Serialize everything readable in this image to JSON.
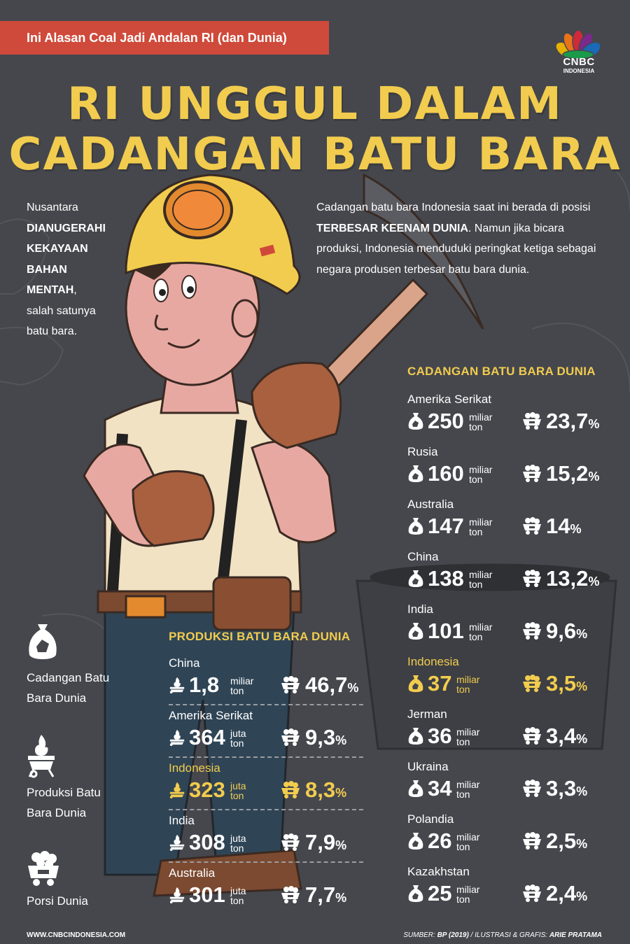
{
  "header": {
    "banner": "Ini Alasan Coal Jadi Andalan RI (dan Dunia)",
    "logo_text": "CNBC",
    "logo_sub": "INDONESIA",
    "title_line1": "RI UNGGUL DALAM",
    "title_line2": "CADANGAN BATU BARA"
  },
  "intro_left": {
    "pre": "Nusantara",
    "bold_lines": [
      "DIANUGERAHI",
      "KEKAYAAN",
      "BAHAN",
      "MENTAH"
    ],
    "comma": ",",
    "post_lines": [
      "salah satunya",
      "batu bara."
    ]
  },
  "intro_right": {
    "pre": "Cadangan batu bara Indonesia saat ini berada di posisi ",
    "bold": "TERBESAR KEENAM DUNIA",
    "post": ". Namun jika bicara produksi, Indonesia menduduki peringkat ketiga sebagai negara produsen terbesar batu bara dunia."
  },
  "reserves": {
    "title": "CADANGAN BATU BARA DUNIA",
    "items": [
      {
        "country": "Amerika Serikat",
        "value": "250",
        "unit1": "miliar",
        "unit2": "ton",
        "pct": "23,7",
        "pct_sign": "%"
      },
      {
        "country": "Rusia",
        "value": "160",
        "unit1": "miliar",
        "unit2": "ton",
        "pct": "15,2",
        "pct_sign": "%"
      },
      {
        "country": "Australia",
        "value": "147",
        "unit1": "miliar",
        "unit2": "ton",
        "pct": "14",
        "pct_sign": "%"
      },
      {
        "country": "China",
        "value": "138",
        "unit1": "miliar",
        "unit2": "ton",
        "pct": "13,2",
        "pct_sign": "%"
      },
      {
        "country": "India",
        "value": "101",
        "unit1": "miliar",
        "unit2": "ton",
        "pct": "9,6",
        "pct_sign": "%"
      },
      {
        "country": "Indonesia",
        "value": "37",
        "unit1": "miliar",
        "unit2": "ton",
        "pct": "3,5",
        "pct_sign": "%",
        "highlight": true
      },
      {
        "country": "Jerman",
        "value": "36",
        "unit1": "miliar",
        "unit2": "ton",
        "pct": "3,4",
        "pct_sign": "%"
      },
      {
        "country": "Ukraina",
        "value": "34",
        "unit1": "miliar",
        "unit2": "ton",
        "pct": "3,3",
        "pct_sign": "%"
      },
      {
        "country": "Polandia",
        "value": "26",
        "unit1": "miliar",
        "unit2": "ton",
        "pct": "2,5",
        "pct_sign": "%"
      },
      {
        "country": "Kazakhstan",
        "value": "25",
        "unit1": "miliar",
        "unit2": "ton",
        "pct": "2,4",
        "pct_sign": "%"
      }
    ]
  },
  "production": {
    "title": "PRODUKSI BATU BARA DUNIA",
    "items": [
      {
        "country": "China",
        "value": "1,8",
        "unit1": "miliar",
        "unit2": "ton",
        "pct": "46,7",
        "pct_sign": "%"
      },
      {
        "country": "Amerika Serikat",
        "value": "364",
        "unit1": "juta",
        "unit2": "ton",
        "pct": "9,3",
        "pct_sign": "%"
      },
      {
        "country": "Indonesia",
        "value": "323",
        "unit1": "juta",
        "unit2": "ton",
        "pct": "8,3",
        "pct_sign": "%",
        "highlight": true
      },
      {
        "country": "India",
        "value": "308",
        "unit1": "juta",
        "unit2": "ton",
        "pct": "7,9",
        "pct_sign": "%"
      },
      {
        "country": "Australia",
        "value": "301",
        "unit1": "juta",
        "unit2": "ton",
        "pct": "7,7",
        "pct_sign": "%"
      }
    ]
  },
  "legend": {
    "reserves_line1": "Cadangan Batu",
    "reserves_line2": "Bara Dunia",
    "production_line1": "Produksi Batu",
    "production_line2": "Bara Dunia",
    "share": "Porsi Dunia"
  },
  "footer": {
    "website": "WWW.CNBCINDONESIA.COM",
    "source_label": "SUMBER: ",
    "source": "BP (2019)",
    "credit_label": " / ILUSTRASI & GRAFIS: ",
    "credit": "ARIE PRATAMA"
  },
  "colors": {
    "background": "#45474d",
    "accent_yellow": "#f2cc4e",
    "banner_red": "#cf4a3a"
  }
}
